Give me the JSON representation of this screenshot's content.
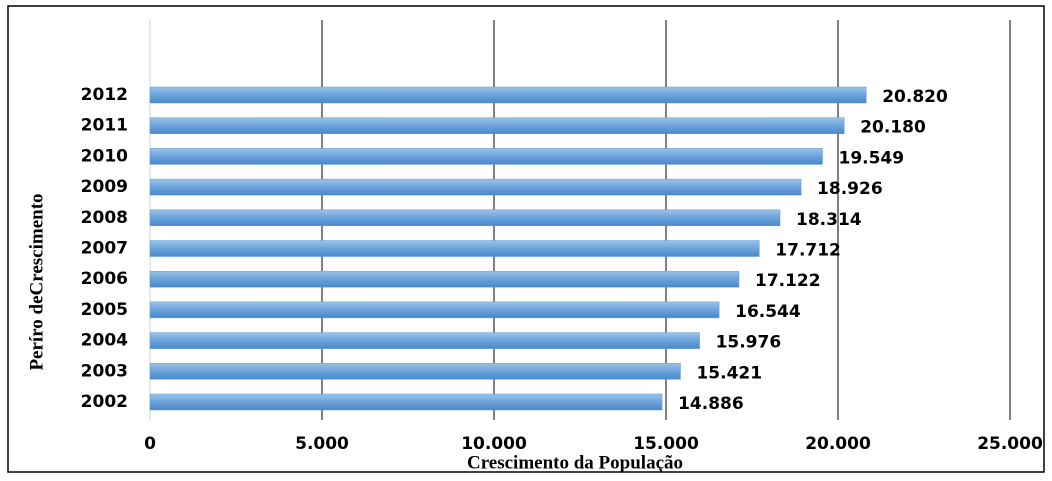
{
  "chart_data": {
    "type": "bar",
    "orientation": "horizontal",
    "x_label": "Crescimento da População",
    "y_label": "Períro deCrescimento",
    "categories": [
      "2002",
      "2003",
      "2004",
      "2005",
      "2006",
      "2007",
      "2008",
      "2009",
      "2010",
      "2011",
      "2012"
    ],
    "values": [
      14886,
      15421,
      15976,
      16544,
      17122,
      17712,
      18314,
      18926,
      19549,
      20180,
      20820
    ],
    "value_labels": [
      "14.886",
      "15.421",
      "15.976",
      "16.544",
      "17.122",
      "17.712",
      "18.314",
      "18.926",
      "19.549",
      "20.180",
      "20.820"
    ],
    "color": "#5b9bd5",
    "xlim": [
      0,
      25000
    ],
    "xticks": [
      0,
      {
        "value": 5000,
        "label": "5.000"
      },
      {
        "value": 10000,
        "label": "10.000"
      },
      {
        "value": 15000,
        "label": "15.000"
      },
      {
        "value": 20000,
        "label": "20.000"
      },
      {
        "value": 25000,
        "label": "25.000"
      }
    ],
    "grid": true
  }
}
